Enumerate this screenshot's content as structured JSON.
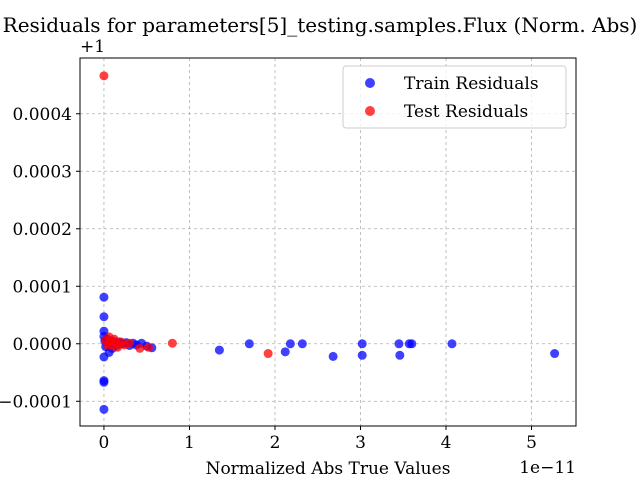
{
  "chart_data": {
    "type": "scatter",
    "title": "Residuals for parameters[5]_testing.samples.Flux (Norm. Abs)",
    "xlabel": "Normalized Abs True Values",
    "ylabel": "",
    "x_offset_label": "1e−11",
    "y_offset_label": "+1",
    "xlim": [
      -0.28,
      5.52
    ],
    "ylim": [
      -0.000143,
      0.000497
    ],
    "grid": true,
    "legend_position": "upper right",
    "x_ticks": [
      {
        "value": 0,
        "label": "0"
      },
      {
        "value": 1,
        "label": "1"
      },
      {
        "value": 2,
        "label": "2"
      },
      {
        "value": 3,
        "label": "3"
      },
      {
        "value": 4,
        "label": "4"
      },
      {
        "value": 5,
        "label": "5"
      }
    ],
    "y_ticks": [
      {
        "value": -0.0001,
        "label": "−0.0001"
      },
      {
        "value": 0.0,
        "label": "0.0000"
      },
      {
        "value": 0.0001,
        "label": "0.0001"
      },
      {
        "value": 0.0002,
        "label": "0.0002"
      },
      {
        "value": 0.0003,
        "label": "0.0003"
      },
      {
        "value": 0.0004,
        "label": "0.0004"
      }
    ],
    "series": [
      {
        "name": "Train Residuals",
        "color": "#0000ff",
        "points": [
          [
            0.0,
            8.1e-05
          ],
          [
            0.0,
            4.7e-05
          ],
          [
            0.0,
            2.2e-05
          ],
          [
            0.0,
            1.3e-05
          ],
          [
            0.0,
            -2.3e-05
          ],
          [
            0.0,
            -6.4e-05
          ],
          [
            0.0,
            -6.7e-05
          ],
          [
            0.0,
            -0.000114
          ],
          [
            0.01,
            5e-06
          ],
          [
            0.02,
            -5e-06
          ],
          [
            0.04,
            8e-06
          ],
          [
            0.06,
            -1.5e-05
          ],
          [
            0.08,
            2e-06
          ],
          [
            0.1,
            -8e-06
          ],
          [
            0.12,
            4e-06
          ],
          [
            0.15,
            -3e-06
          ],
          [
            0.18,
            3e-06
          ],
          [
            0.22,
            0.0
          ],
          [
            0.26,
            2e-06
          ],
          [
            0.3,
            -3e-06
          ],
          [
            0.34,
            1e-06
          ],
          [
            0.38,
            -2e-06
          ],
          [
            0.44,
            1e-06
          ],
          [
            0.5,
            -4e-06
          ],
          [
            0.56,
            -7e-06
          ],
          [
            1.35,
            -1.1e-05
          ],
          [
            1.7,
            0.0
          ],
          [
            2.12,
            -1.4e-05
          ],
          [
            2.18,
            0.0
          ],
          [
            2.32,
            0.0
          ],
          [
            2.68,
            -2.2e-05
          ],
          [
            3.02,
            0.0
          ],
          [
            3.02,
            -2e-05
          ],
          [
            3.45,
            0.0
          ],
          [
            3.46,
            -2e-05
          ],
          [
            3.57,
            0.0
          ],
          [
            3.6,
            0.0
          ],
          [
            4.07,
            0.0
          ],
          [
            5.27,
            -1.7e-05
          ]
        ]
      },
      {
        "name": "Test Residuals",
        "color": "#ff0000",
        "points": [
          [
            0.0,
            0.000466
          ],
          [
            0.02,
            6e-06
          ],
          [
            0.04,
            -2e-06
          ],
          [
            0.06,
            1.2e-05
          ],
          [
            0.08,
            4e-06
          ],
          [
            0.1,
            -4e-06
          ],
          [
            0.12,
            8e-06
          ],
          [
            0.14,
            2e-06
          ],
          [
            0.16,
            -6e-06
          ],
          [
            0.2,
            3e-06
          ],
          [
            0.24,
            -2e-06
          ],
          [
            0.3,
            1e-06
          ],
          [
            0.42,
            -8e-06
          ],
          [
            0.52,
            -6e-06
          ],
          [
            0.8,
            1e-06
          ],
          [
            1.92,
            -1.7e-05
          ]
        ]
      }
    ]
  }
}
